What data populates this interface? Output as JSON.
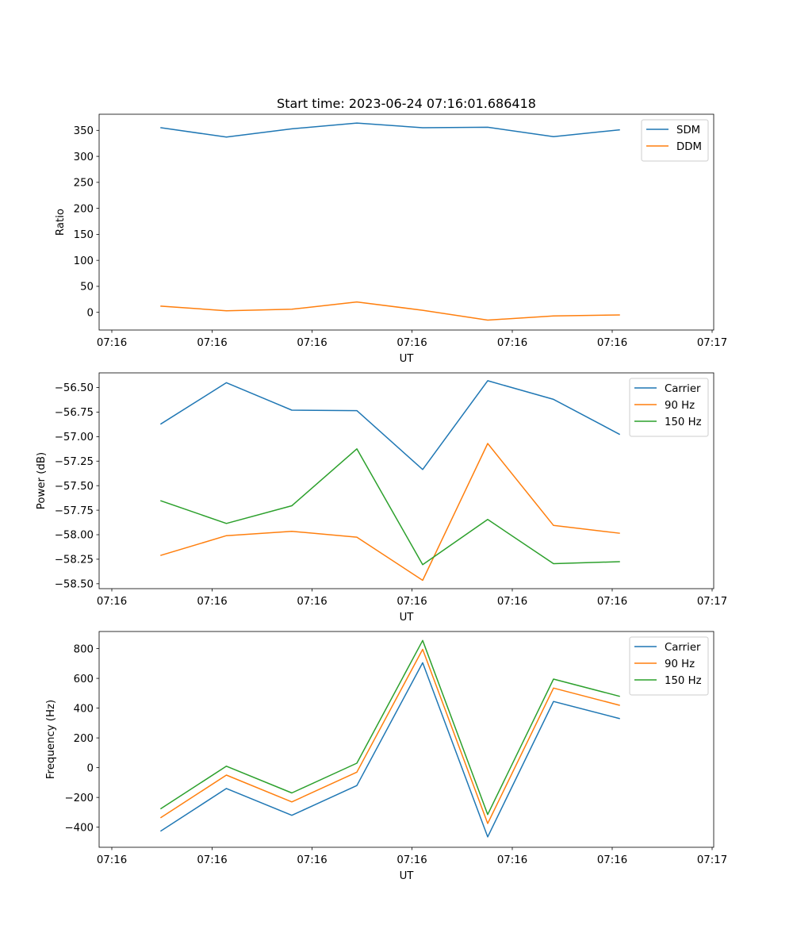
{
  "title": "Start time: 2023-06-24 07:16:01.686418",
  "chart_data": [
    {
      "type": "line",
      "title": "Start time: 2023-06-24 07:16:01.686418",
      "xlabel": "UT",
      "ylabel": "Ratio",
      "x_tick_labels": [
        "07:16",
        "07:16",
        "07:16",
        "07:16",
        "07:16",
        "07:16",
        "07:17"
      ],
      "y_ticks": [
        0,
        50,
        100,
        150,
        200,
        250,
        300,
        350
      ],
      "ylim": [
        -34,
        381
      ],
      "legend_position": "upper right",
      "series": [
        {
          "name": "SDM",
          "color": "#1f77b4",
          "values": [
            355,
            337,
            353,
            364,
            355,
            356,
            338,
            351
          ]
        },
        {
          "name": "DDM",
          "color": "#ff7f0e",
          "values": [
            12,
            3,
            6,
            20,
            4,
            -15,
            -7,
            -5
          ]
        }
      ]
    },
    {
      "type": "line",
      "title": "",
      "xlabel": "UT",
      "ylabel": "Power (dB)",
      "x_tick_labels": [
        "07:16",
        "07:16",
        "07:16",
        "07:16",
        "07:16",
        "07:16",
        "07:17"
      ],
      "y_ticks": [
        -58.5,
        -58.25,
        -58.0,
        -57.75,
        -57.5,
        -57.25,
        -57.0,
        -56.75,
        -56.5
      ],
      "y_tick_labels": [
        "−58.50",
        "−58.25",
        "−58.00",
        "−57.75",
        "−57.50",
        "−57.25",
        "−57.00",
        "−56.75",
        "−56.50"
      ],
      "ylim": [
        -58.55,
        -56.35
      ],
      "legend_position": "upper right",
      "series": [
        {
          "name": "Carrier",
          "color": "#1f77b4",
          "values": [
            -56.87,
            -56.45,
            -56.73,
            -56.735,
            -57.335,
            -56.43,
            -56.62,
            -56.975
          ]
        },
        {
          "name": "90 Hz",
          "color": "#ff7f0e",
          "values": [
            -58.21,
            -58.01,
            -57.965,
            -58.025,
            -58.465,
            -57.07,
            -57.905,
            -57.985
          ]
        },
        {
          "name": "150 Hz",
          "color": "#2ca02c",
          "values": [
            -57.655,
            -57.885,
            -57.705,
            -57.125,
            -58.305,
            -57.845,
            -58.295,
            -58.275
          ]
        }
      ]
    },
    {
      "type": "line",
      "title": "",
      "xlabel": "UT",
      "ylabel": "Frequency (Hz)",
      "x_tick_labels": [
        "07:16",
        "07:16",
        "07:16",
        "07:16",
        "07:16",
        "07:16",
        "07:17"
      ],
      "y_ticks": [
        -400,
        -200,
        0,
        200,
        400,
        600,
        800
      ],
      "y_tick_labels": [
        "−400",
        "−200",
        "0",
        "200",
        "400",
        "600",
        "800"
      ],
      "ylim": [
        -535,
        915
      ],
      "legend_position": "upper right",
      "series": [
        {
          "name": "Carrier",
          "color": "#1f77b4",
          "values": [
            -425,
            -140,
            -320,
            -120,
            705,
            -465,
            445,
            330
          ]
        },
        {
          "name": "90 Hz",
          "color": "#ff7f0e",
          "values": [
            -335,
            -50,
            -230,
            -30,
            795,
            -375,
            535,
            420
          ]
        },
        {
          "name": "150 Hz",
          "color": "#2ca02c",
          "values": [
            -275,
            10,
            -170,
            30,
            855,
            -315,
            595,
            480
          ]
        }
      ]
    }
  ]
}
